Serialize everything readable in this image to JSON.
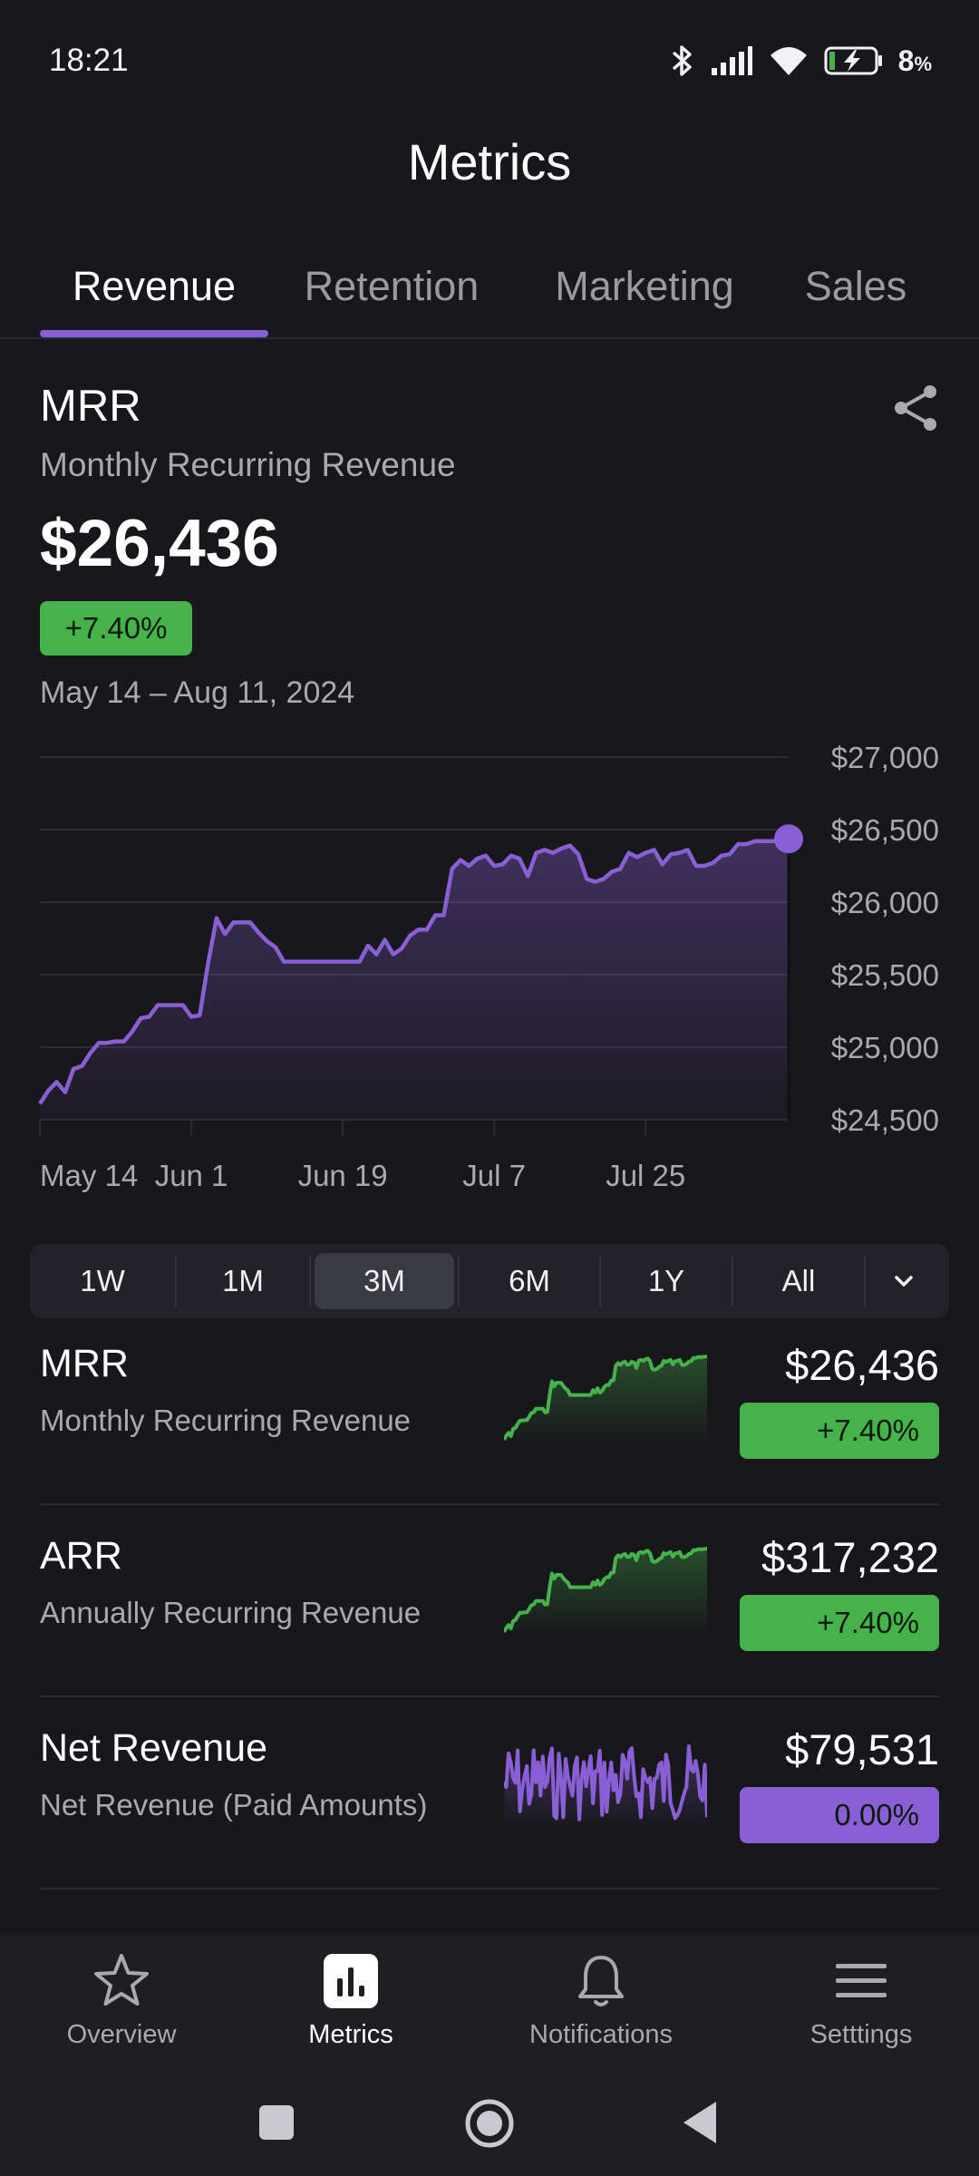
{
  "status_bar": {
    "time": "18:21",
    "battery": "8",
    "battery_unit": "%"
  },
  "header": {
    "title": "Metrics"
  },
  "tabs": [
    {
      "label": "Revenue",
      "active": true
    },
    {
      "label": "Retention",
      "active": false
    },
    {
      "label": "Marketing",
      "active": false
    },
    {
      "label": "Sales",
      "active": false
    }
  ],
  "summary": {
    "title": "MRR",
    "subtitle": "Monthly Recurring Revenue",
    "value": "$26,436",
    "delta": "+7.40%",
    "date_range": "May 14 – Aug 11, 2024"
  },
  "chart_data": {
    "type": "area",
    "title": "",
    "xlabel": "",
    "ylabel": "",
    "ylim": [
      24500,
      27000
    ],
    "y_ticks": [
      "$27,000",
      "$26,500",
      "$26,000",
      "$25,500",
      "$25,000",
      "$24,500"
    ],
    "x_ticks": [
      "May 14",
      "Jun 1",
      "Jun 19",
      "Jul 7",
      "Jul 25"
    ],
    "grid": true,
    "y_axis_side": "right",
    "color": "#8a5fd6",
    "x": [
      "May 14",
      "May 15",
      "May 16",
      "May 17",
      "May 18",
      "May 19",
      "May 20",
      "May 21",
      "May 22",
      "May 23",
      "May 24",
      "May 25",
      "May 26",
      "May 27",
      "May 28",
      "May 29",
      "May 30",
      "May 31",
      "Jun 1",
      "Jun 2",
      "Jun 3",
      "Jun 4",
      "Jun 5",
      "Jun 6",
      "Jun 7",
      "Jun 8",
      "Jun 9",
      "Jun 10",
      "Jun 11",
      "Jun 12",
      "Jun 13",
      "Jun 14",
      "Jun 15",
      "Jun 16",
      "Jun 17",
      "Jun 18",
      "Jun 19",
      "Jun 20",
      "Jun 21",
      "Jun 22",
      "Jun 23",
      "Jun 24",
      "Jun 25",
      "Jun 26",
      "Jun 27",
      "Jun 28",
      "Jun 29",
      "Jun 30",
      "Jul 1",
      "Jul 2",
      "Jul 3",
      "Jul 4",
      "Jul 5",
      "Jul 6",
      "Jul 7",
      "Jul 8",
      "Jul 9",
      "Jul 10",
      "Jul 11",
      "Jul 12",
      "Jul 13",
      "Jul 14",
      "Jul 15",
      "Jul 16",
      "Jul 17",
      "Jul 18",
      "Jul 19",
      "Jul 20",
      "Jul 21",
      "Jul 22",
      "Jul 23",
      "Jul 24",
      "Jul 25",
      "Jul 26",
      "Jul 27",
      "Jul 28",
      "Jul 29",
      "Jul 30",
      "Jul 31",
      "Aug 1",
      "Aug 2",
      "Aug 3",
      "Aug 4",
      "Aug 5",
      "Aug 6",
      "Aug 7",
      "Aug 8",
      "Aug 9",
      "Aug 10",
      "Aug 11"
    ],
    "series": [
      {
        "values": [
          24610,
          24700,
          24760,
          24690,
          24850,
          24870,
          24960,
          25030,
          25030,
          25040,
          25040,
          25110,
          25200,
          25210,
          25290,
          25290,
          25290,
          25290,
          25210,
          25220,
          25580,
          25890,
          25780,
          25860,
          25860,
          25860,
          25790,
          25730,
          25690,
          25590,
          25590,
          25590,
          25590,
          25590,
          25590,
          25590,
          25590,
          25590,
          25590,
          25700,
          25640,
          25740,
          25640,
          25680,
          25770,
          25810,
          25810,
          25910,
          25910,
          26230,
          26290,
          26250,
          26300,
          26320,
          26250,
          26260,
          26320,
          26300,
          26180,
          26340,
          26360,
          26340,
          26370,
          26390,
          26330,
          26160,
          26140,
          26160,
          26210,
          26230,
          26340,
          26310,
          26340,
          26360,
          26260,
          26330,
          26340,
          26360,
          26250,
          26250,
          26270,
          26320,
          26330,
          26400,
          26400,
          26420,
          26420,
          26420,
          26430,
          26436
        ]
      }
    ]
  },
  "ranges": {
    "items": [
      "1W",
      "1M",
      "3M",
      "6M",
      "1Y",
      "All"
    ],
    "active": "3M"
  },
  "metrics": [
    {
      "title": "MRR",
      "subtitle": "Monthly Recurring Revenue",
      "value": "$26,436",
      "delta": "+7.40%",
      "color": "#46b24a",
      "trend": "up"
    },
    {
      "title": "ARR",
      "subtitle": "Annually Recurring Revenue",
      "value": "$317,232",
      "delta": "+7.40%",
      "color": "#46b24a",
      "trend": "up"
    },
    {
      "title": "Net Revenue",
      "subtitle": "Net Revenue (Paid Amounts)",
      "value": "$79,531",
      "delta": "0.00%",
      "color": "#8a5fd6",
      "trend": "flat"
    }
  ],
  "bottom_nav": [
    {
      "label": "Overview",
      "icon": "star-icon",
      "active": false
    },
    {
      "label": "Metrics",
      "icon": "bar-chart-icon",
      "active": true
    },
    {
      "label": "Notifications",
      "icon": "bell-icon",
      "active": false
    },
    {
      "label": "Setttings",
      "icon": "menu-icon",
      "active": false
    }
  ],
  "theme": {
    "accent": "#8a5fd6",
    "positive": "#46b24a",
    "background": "#18181c"
  }
}
